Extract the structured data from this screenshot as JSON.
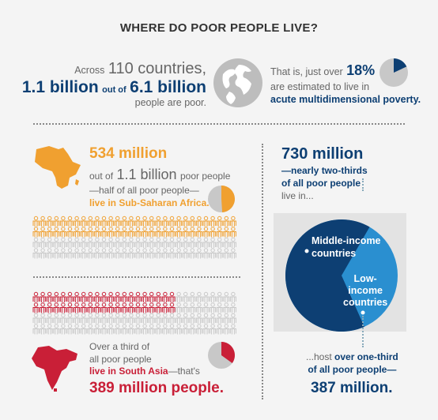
{
  "header": {
    "title": "WHERE DO POOR PEOPLE LIVE?"
  },
  "intro_left": {
    "across": "Across",
    "countries": "110 countries,",
    "billion_a": "1.1 billion",
    "out_of": "out of",
    "billion_b": "6.1 billion",
    "tail": "people are poor."
  },
  "intro_right": {
    "lead": "That is, just over",
    "percent": "18%",
    "line2": "are estimated to live in",
    "line3": "acute multidimensional poverty.",
    "pie_share": 0.18
  },
  "africa": {
    "headline": "534 million",
    "out_of": "out of",
    "billion": "1.1 billion",
    "poor_people": "poor people",
    "line3": "—half of all poor people—",
    "line4": "live in Sub-Saharan Africa.",
    "pie_share": 0.49,
    "rows_filled": 2,
    "rows_total": 4
  },
  "south_asia": {
    "line1": "Over a third of",
    "line2": "all poor people",
    "line3_a": "live in South Asia",
    "line3_b": "—that's",
    "headline": "389 million people.",
    "pie_share": 0.35
  },
  "middle_income": {
    "headline": "730 million",
    "line2": "—nearly two-thirds",
    "line3": "of all poor people",
    "line4": "live in...",
    "pie_label": "Middle-income countries",
    "pie_label_1": "Middle-income",
    "pie_label_2": "countries",
    "share": 0.65
  },
  "low_income": {
    "pie_label_1": "Low-",
    "pie_label_2": "income",
    "pie_label_3": "countries",
    "line1": "...host",
    "line1_bold": "over one-third",
    "line2": "of all poor people—",
    "headline": "387 million.",
    "share": 0.35
  },
  "colors": {
    "navy": "#0d3f73",
    "light_blue": "#2a8fd0",
    "orange": "#f0a030",
    "red": "#c91f37",
    "grey_icon": "#c8c8c8"
  }
}
